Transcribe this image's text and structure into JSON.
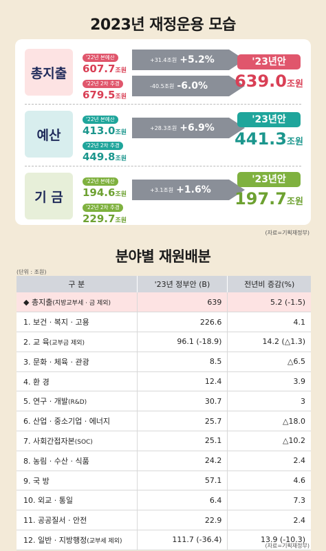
{
  "title": "2023년 재정운용 모습",
  "summary": {
    "total": {
      "label": "총지출",
      "tag1": "'22년 본예산",
      "val1": "607.7",
      "unit1": "조원",
      "tag2": "'22년 2차 추경",
      "val2": "679.5",
      "unit2": "조원",
      "change1_amt": "+31.4조원",
      "change1_pct": "+5.2%",
      "change2_amt": "-40.5조원",
      "change2_pct": "-6.0%",
      "result_label": "'23년안",
      "result_val": "639.0",
      "result_unit": "조원"
    },
    "budget": {
      "label": "예산",
      "tag1": "'22년 본예산",
      "val1": "413.0",
      "unit1": "조원",
      "tag2": "'22년 2차 추경",
      "val2": "449.8",
      "unit2": "조원",
      "change_amt": "+28.3조원",
      "change_pct": "+6.9%",
      "result_label": "'23년안",
      "result_val": "441.3",
      "result_unit": "조원"
    },
    "fund": {
      "label": "기 금",
      "tag1": "'22년 본예산",
      "val1": "194.6",
      "unit1": "조원",
      "tag2": "'22년 2차 추경",
      "val2": "229.7",
      "unit2": "조원",
      "change_amt": "+3.1조원",
      "change_pct": "+1.6%",
      "result_label": "'23년안",
      "result_val": "197.7",
      "result_unit": "조원"
    }
  },
  "source1": "(자료=기획재정부)",
  "section2_title": "분야별 재원배분",
  "unit_note": "(단위 : 조원)",
  "table": {
    "headers": [
      "구 분",
      "'23년 정부안 (B)",
      "전년비 증감(%)"
    ],
    "rows": [
      {
        "name": "◆ 총지출",
        "sub": "(지방교부세 · 금 제외)",
        "b": "639",
        "chg": "5.2 (-1.5)"
      },
      {
        "name": "1. 보건 · 복지 · 고용",
        "sub": "",
        "b": "226.6",
        "chg": "4.1"
      },
      {
        "name": "2. 교 육",
        "sub": "(교부금 제외)",
        "b": "96.1 (-18.9)",
        "chg": "14.2 (△1.3)"
      },
      {
        "name": "3. 문화 · 체육 · 관광",
        "sub": "",
        "b": "8.5",
        "chg": "△6.5"
      },
      {
        "name": "4. 환 경",
        "sub": "",
        "b": "12.4",
        "chg": "3.9"
      },
      {
        "name": "5. 연구 · 개발",
        "sub": "(R&D)",
        "b": "30.7",
        "chg": "3"
      },
      {
        "name": "6. 산업 · 중소기업 · 에너지",
        "sub": "",
        "b": "25.7",
        "chg": "△18.0"
      },
      {
        "name": "7. 사회간접자본",
        "sub": "(SOC)",
        "b": "25.1",
        "chg": "△10.2"
      },
      {
        "name": "8. 농림 · 수산 · 식품",
        "sub": "",
        "b": "24.2",
        "chg": "2.4"
      },
      {
        "name": "9. 국 방",
        "sub": "",
        "b": "57.1",
        "chg": "4.6"
      },
      {
        "name": "10. 외교 · 통일",
        "sub": "",
        "b": "6.4",
        "chg": "7.3"
      },
      {
        "name": "11. 공공질서 · 안전",
        "sub": "",
        "b": "22.9",
        "chg": "2.4"
      },
      {
        "name": "12. 일반 · 지방행정",
        "sub": "(교부세 제외)",
        "b": "111.7 (-36.4)",
        "chg": "13.9 (-10.3)"
      }
    ]
  },
  "source2": "(자료=기획재정부)"
}
